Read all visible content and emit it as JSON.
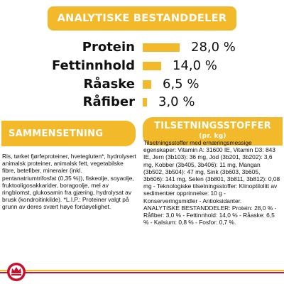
{
  "top_banner": {
    "title": "ANALYTISKE BESTANDDELER"
  },
  "analysis": [
    {
      "label": "Protein",
      "value": "28,0 %",
      "amount": 28.0
    },
    {
      "label": "Fettinnhold",
      "value": "14,0 %",
      "amount": 14.0
    },
    {
      "label": "Råaske",
      "value": "6,5 %",
      "amount": 6.5
    },
    {
      "label": "Råfiber",
      "value": "3,0 %",
      "amount": 3.0
    }
  ],
  "composition": {
    "title": "SAMMENSETNING",
    "text": "Ris, tørket fjørfeproteiner, hvetegluten*, hydrolysert animalsk proteiner, animalsk fett, vegetabilske fibre, betefiber, mineraler (inkl. pentanatriumtrifosfat (0,35 %)), fiskeolje, soyaolje, fruktooligosakkarider, boragoolje, mel av ringblomst, glukosamin fra gjæring, hydrolysat av brusk (kondroitinkilde). *L.I.P.: Proteiner valgt på grunn av deres svært høye fordøyelighet."
  },
  "additives": {
    "title": "TILSETNINGSSTOFFER",
    "subtitle": "(pr. kg)",
    "text_1": "Tilsetningsstoffer med ernæringsmessige egenskaper: Vitamin A: 31600 IE, Vitamin D3: 843 IE, Jern (3b103): 36 mg, Jod (3b201, 3b202): 3,6 mg, Kobber (3b405, 3b406): 11 mg, Mangan (3b502, 3b504): 47 mg, Sink (3b603, 3b605, 3b606): 141 mg, Selen (3b801, 3b811, 3b812): 0,08 mg - Teknologiske tilsetningsstoffer: Klinoptilolitt av sedimentær opprinnelse: 10 g - Konserveringsmidler - Antioksidanter.",
    "text_2": "ANALYTISKE BESTANDDELER: Protein: 28,0 % - Råfiber: 3,0 % - Fettinnhold: 14,0 % - Råaske: 6,5 % - Kalsium: 0,8 % - Fosfor: 0,7 %."
  },
  "colors": {
    "accent": "#f2ba2b",
    "brand_red": "#c8102e",
    "text": "#111111"
  },
  "footer": {
    "logo_icon": "royal-canin-crown-logo"
  }
}
